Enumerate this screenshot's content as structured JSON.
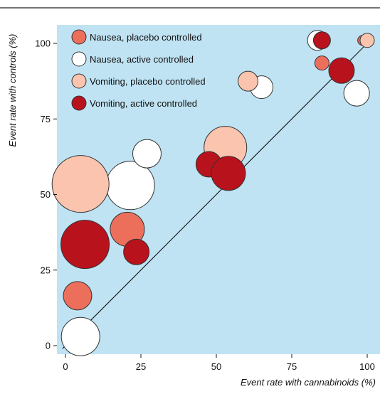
{
  "chart_data": {
    "type": "scatter",
    "title": "",
    "xlabel": "Event rate with cannabinoids (%)",
    "ylabel": "Event rate with controls (%)",
    "xlim": [
      -2,
      102
    ],
    "ylim": [
      -2,
      107
    ],
    "xticks": [
      0,
      25,
      50,
      75,
      100
    ],
    "yticks": [
      0,
      25,
      50,
      75,
      100
    ],
    "xtick_labels": [
      "0",
      "25",
      "50",
      "75",
      "100"
    ],
    "ytick_labels": [
      "0",
      "25",
      "50",
      "75",
      "100"
    ],
    "grid": false,
    "legend_position": "top-left",
    "background_color": "#bfe3f3",
    "reference_line": "y = x",
    "series": [
      {
        "name": "Nausea, placebo controlled",
        "color": "#ec6f5c",
        "points": [
          {
            "x": 4,
            "y": 16.5,
            "size": 2
          },
          {
            "x": 20.5,
            "y": 38.5,
            "size": 2.4
          },
          {
            "x": 85,
            "y": 93.5,
            "size": 1
          },
          {
            "x": 98.5,
            "y": 101,
            "size": 0.7
          }
        ]
      },
      {
        "name": "Nausea, active controlled",
        "color": "#ffffff",
        "points": [
          {
            "x": 5,
            "y": 3,
            "size": 2.7
          },
          {
            "x": 21.5,
            "y": 53,
            "size": 3.4
          },
          {
            "x": 27,
            "y": 63.5,
            "size": 2
          },
          {
            "x": 50.5,
            "y": 66.5,
            "size": 1.8
          },
          {
            "x": 65,
            "y": 85.5,
            "size": 1.6
          },
          {
            "x": 83.5,
            "y": 101,
            "size": 1.4
          },
          {
            "x": 96.5,
            "y": 83.5,
            "size": 1.8
          }
        ]
      },
      {
        "name": "Vomiting, placebo controlled",
        "color": "#fbc4ae",
        "points": [
          {
            "x": 5,
            "y": 53.5,
            "size": 4
          },
          {
            "x": 53,
            "y": 65.5,
            "size": 3
          },
          {
            "x": 60.5,
            "y": 87.5,
            "size": 1.4
          },
          {
            "x": 100,
            "y": 101,
            "size": 1
          }
        ]
      },
      {
        "name": "Vomiting, active controlled",
        "color": "#b8121d",
        "points": [
          {
            "x": 6.5,
            "y": 33.5,
            "size": 3.4
          },
          {
            "x": 23.5,
            "y": 31,
            "size": 1.8
          },
          {
            "x": 47.5,
            "y": 60,
            "size": 1.8
          },
          {
            "x": 54,
            "y": 57,
            "size": 2.4
          },
          {
            "x": 85,
            "y": 101,
            "size": 1.2
          },
          {
            "x": 91.5,
            "y": 91,
            "size": 1.8
          }
        ]
      }
    ]
  }
}
